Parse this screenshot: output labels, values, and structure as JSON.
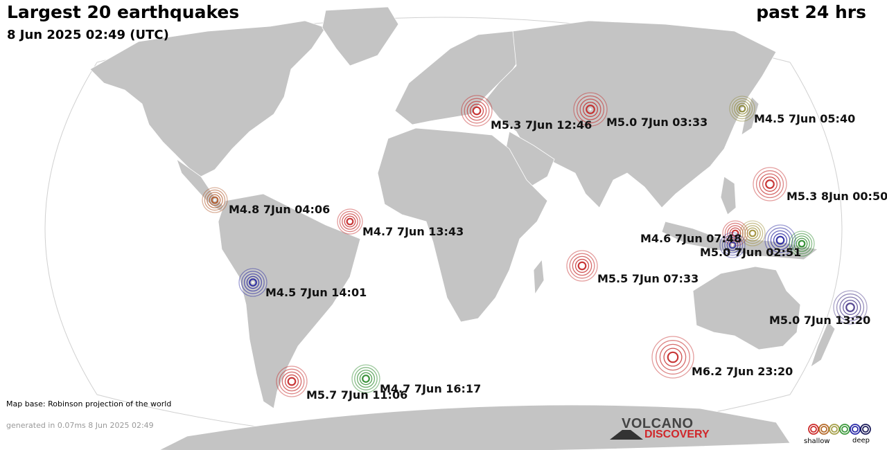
{
  "header": {
    "title": "Largest 20 earthquakes",
    "period": "past 24 hrs",
    "datetime": "8 Jun 2025 02:49 (UTC)"
  },
  "footer": {
    "map_base": "Map base: Robinson projection of the world",
    "generated": "generated in 0.07ms  8 Jun 2025 02:49"
  },
  "logo": {
    "line1": "VOLCANO",
    "line2": "DISCOVERY"
  },
  "legend": {
    "shallow_label": "shallow",
    "deep_label": "deep",
    "colors": [
      "#cc2a2a",
      "#b56a2a",
      "#a6a04a",
      "#3c9a3c",
      "#2a2aa8",
      "#1c1c5a"
    ]
  },
  "colors": {
    "ocean": "#ffffff",
    "land": "#c4c4c4",
    "border": "#ffffff"
  },
  "quakes": [
    {
      "label": "M5.3  7Jun 12:46",
      "color": "#c42828"
    },
    {
      "label": "M5.0  7Jun 03:33",
      "color": "#c42828"
    },
    {
      "label": "M4.5  7Jun 05:40",
      "color": "#8e8a3a"
    },
    {
      "label": "M5.3  8Jun 00:50",
      "color": "#c42828"
    },
    {
      "label": "M4.8  7Jun 04:06",
      "color": "#b0582a"
    },
    {
      "label": "M4.7  7Jun 13:43",
      "color": "#c42828"
    },
    {
      "label": "M4.6  7Jun 07:48",
      "color": "#c42828"
    },
    {
      "label": "",
      "color": "#a0903a"
    },
    {
      "label": "M5.0  7Jun 02:51",
      "color": "#2828a0"
    },
    {
      "label": "",
      "color": "#2a8a2a"
    },
    {
      "label": "",
      "color": "#3a3aa0"
    },
    {
      "label": "M5.5  7Jun 07:33",
      "color": "#c42828"
    },
    {
      "label": "M4.5  7Jun 14:01",
      "color": "#2828a0"
    },
    {
      "label": "M5.0  7Jun 13:20",
      "color": "#4a3a8a"
    },
    {
      "label": "M6.2  7Jun 23:20",
      "color": "#c42828"
    },
    {
      "label": "M5.7  7Jun 11:06",
      "color": "#c42828"
    },
    {
      "label": "M4.7  7Jun 16:17",
      "color": "#2a8a2a"
    }
  ]
}
